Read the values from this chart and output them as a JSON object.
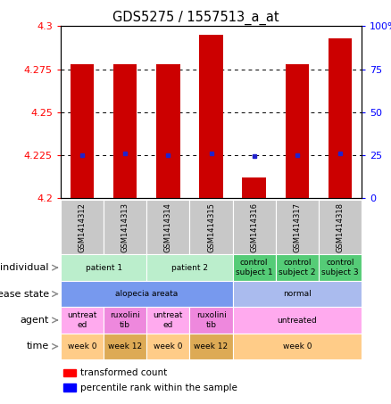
{
  "title": "GDS5275 / 1557513_a_at",
  "samples": [
    "GSM1414312",
    "GSM1414313",
    "GSM1414314",
    "GSM1414315",
    "GSM1414316",
    "GSM1414317",
    "GSM1414318"
  ],
  "bar_values": [
    4.278,
    4.278,
    4.278,
    4.295,
    4.212,
    4.278,
    4.293
  ],
  "bar_bottom": 4.2,
  "dot_values": [
    4.225,
    4.226,
    4.225,
    4.226,
    4.2245,
    4.225,
    4.226
  ],
  "ylim": [
    4.2,
    4.3
  ],
  "right_ylim": [
    0,
    100
  ],
  "right_yticks": [
    0,
    25,
    50,
    75,
    100
  ],
  "left_yticks": [
    4.2,
    4.225,
    4.25,
    4.275,
    4.3
  ],
  "left_yticklabels": [
    "4.2",
    "4.225",
    "4.25",
    "4.275",
    "4.3"
  ],
  "right_yticklabels": [
    "0",
    "25",
    "50",
    "75",
    "100%"
  ],
  "hline_values": [
    4.225,
    4.25,
    4.275
  ],
  "bar_color": "#cc0000",
  "dot_color": "#2222cc",
  "sample_bg": "#c8c8c8",
  "rows": [
    {
      "label": "individual",
      "cells": [
        {
          "text": "patient 1",
          "span": 2,
          "color": "#bbeecc"
        },
        {
          "text": "patient 2",
          "span": 2,
          "color": "#bbeecc"
        },
        {
          "text": "control\nsubject 1",
          "span": 1,
          "color": "#55cc77"
        },
        {
          "text": "control\nsubject 2",
          "span": 1,
          "color": "#55cc77"
        },
        {
          "text": "control\nsubject 3",
          "span": 1,
          "color": "#55cc77"
        }
      ]
    },
    {
      "label": "disease state",
      "cells": [
        {
          "text": "alopecia areata",
          "span": 4,
          "color": "#7799ee"
        },
        {
          "text": "normal",
          "span": 3,
          "color": "#aabbee"
        }
      ]
    },
    {
      "label": "agent",
      "cells": [
        {
          "text": "untreat\ned",
          "span": 1,
          "color": "#ffaaee"
        },
        {
          "text": "ruxolini\ntib",
          "span": 1,
          "color": "#ee88dd"
        },
        {
          "text": "untreat\ned",
          "span": 1,
          "color": "#ffaaee"
        },
        {
          "text": "ruxolini\ntib",
          "span": 1,
          "color": "#ee88dd"
        },
        {
          "text": "untreated",
          "span": 3,
          "color": "#ffaaee"
        }
      ]
    },
    {
      "label": "time",
      "cells": [
        {
          "text": "week 0",
          "span": 1,
          "color": "#ffcc88"
        },
        {
          "text": "week 12",
          "span": 1,
          "color": "#ddaa55"
        },
        {
          "text": "week 0",
          "span": 1,
          "color": "#ffcc88"
        },
        {
          "text": "week 12",
          "span": 1,
          "color": "#ddaa55"
        },
        {
          "text": "week 0",
          "span": 3,
          "color": "#ffcc88"
        }
      ]
    }
  ],
  "fig_width": 4.38,
  "fig_height": 4.53,
  "dpi": 100
}
